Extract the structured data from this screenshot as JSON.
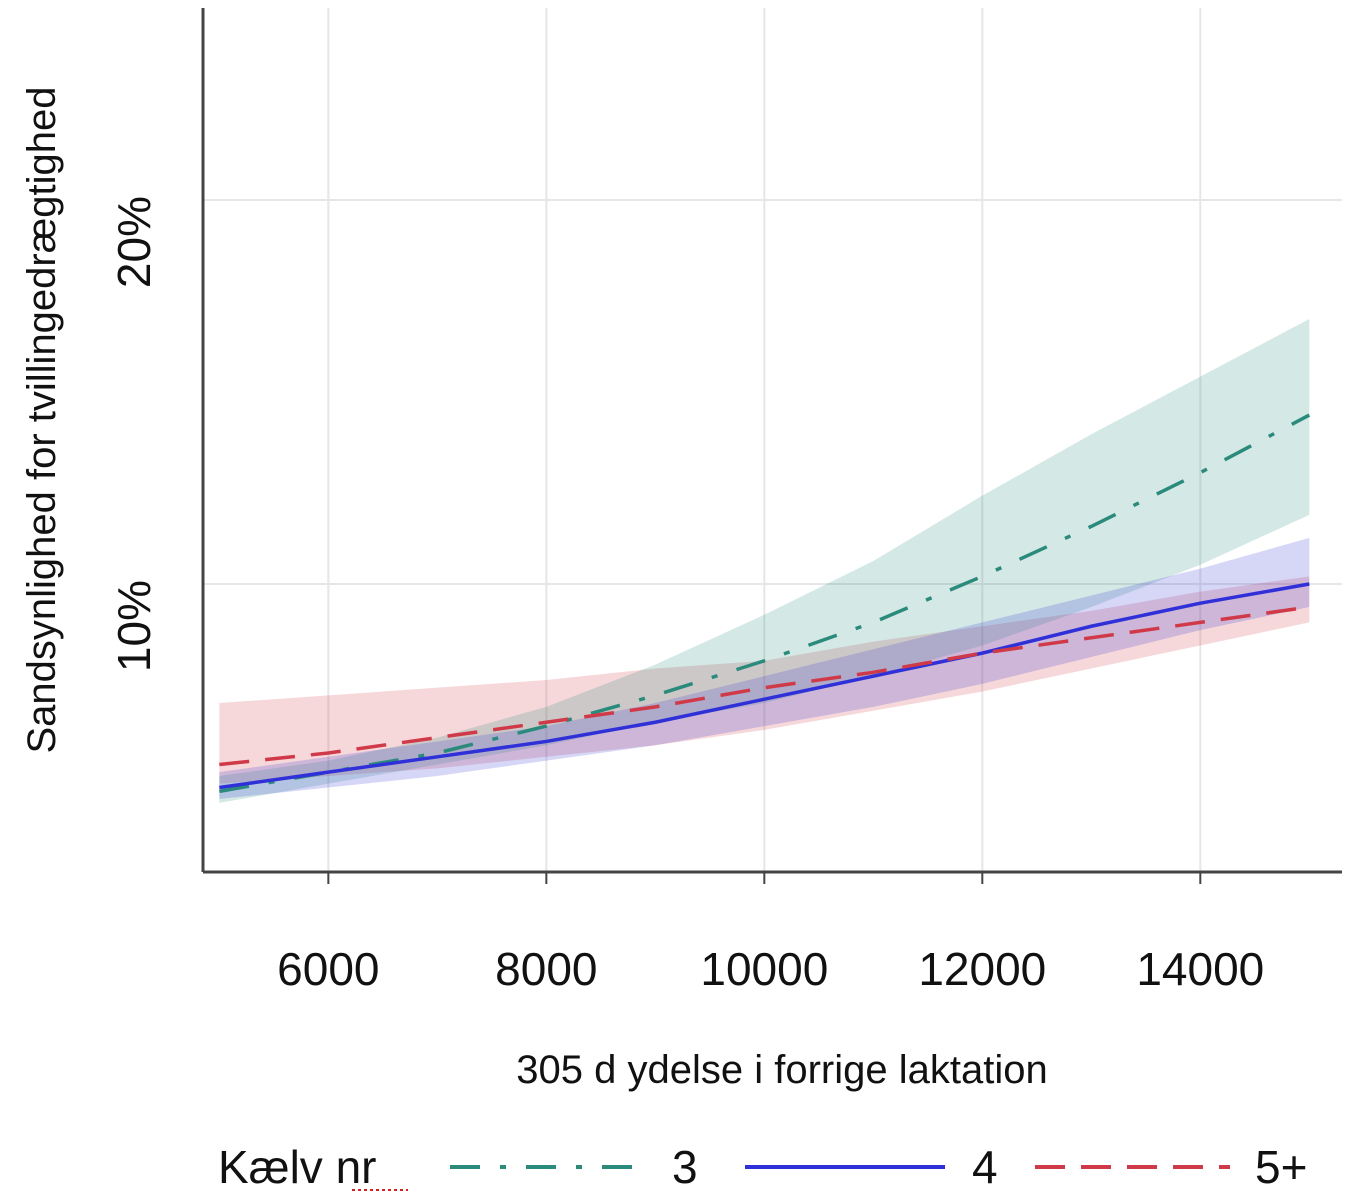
{
  "chart_data": {
    "type": "line",
    "title": "",
    "xlabel": "305 d ydelse i forrige laktation",
    "ylabel": "Sandsynlighed for tvillingedrægtighed",
    "xlim": [
      4850,
      15300
    ],
    "ylim": [
      2.5,
      25
    ],
    "x_ticks": [
      "6000",
      "8000",
      "10000",
      "12000",
      "14000"
    ],
    "x_tick_values": [
      6000,
      8000,
      10000,
      12000,
      14000
    ],
    "y_ticks": [
      "10%",
      "20%"
    ],
    "y_tick_values": [
      10,
      20
    ],
    "grid": true,
    "legend": {
      "position": "bottom",
      "title": "Kælv nr",
      "entries": [
        "3",
        "4",
        "5+"
      ]
    },
    "x": [
      5000,
      6000,
      7000,
      8000,
      9000,
      10000,
      11000,
      12000,
      13000,
      14000,
      15000
    ],
    "series": [
      {
        "name": "3",
        "color": "#2a8a7c",
        "dash": "dashdot",
        "values": [
          4.6,
          5.1,
          5.6,
          6.3,
          7.1,
          8.0,
          9.0,
          10.2,
          11.5,
          12.9,
          14.4
        ],
        "lower": [
          4.3,
          4.8,
          5.3,
          5.8,
          6.4,
          6.9,
          7.6,
          8.4,
          9.4,
          10.5,
          11.8
        ],
        "upper": [
          5.0,
          5.4,
          6.0,
          6.8,
          7.9,
          9.2,
          10.6,
          12.3,
          13.9,
          15.4,
          16.9
        ]
      },
      {
        "name": "4",
        "color": "#3030d8",
        "dash": "solid",
        "values": [
          4.7,
          5.1,
          5.5,
          5.9,
          6.4,
          7.0,
          7.6,
          8.2,
          8.9,
          9.5,
          10.0
        ],
        "lower": [
          4.4,
          4.7,
          5.0,
          5.4,
          5.8,
          6.3,
          6.8,
          7.4,
          8.1,
          8.8,
          9.4
        ],
        "upper": [
          5.1,
          5.5,
          5.9,
          6.3,
          6.9,
          7.6,
          8.3,
          9.0,
          9.7,
          10.4,
          11.2
        ]
      },
      {
        "name": "5+",
        "color": "#d03a48",
        "dash": "dashed",
        "values": [
          5.3,
          5.6,
          6.0,
          6.4,
          6.8,
          7.3,
          7.7,
          8.2,
          8.6,
          9.0,
          9.4
        ],
        "lower": [
          4.8,
          5.0,
          5.2,
          5.5,
          5.8,
          6.2,
          6.7,
          7.2,
          7.8,
          8.4,
          9.0
        ],
        "upper": [
          6.9,
          7.1,
          7.3,
          7.5,
          7.8,
          8.0,
          8.5,
          8.9,
          9.3,
          9.8,
          10.2
        ]
      }
    ]
  }
}
